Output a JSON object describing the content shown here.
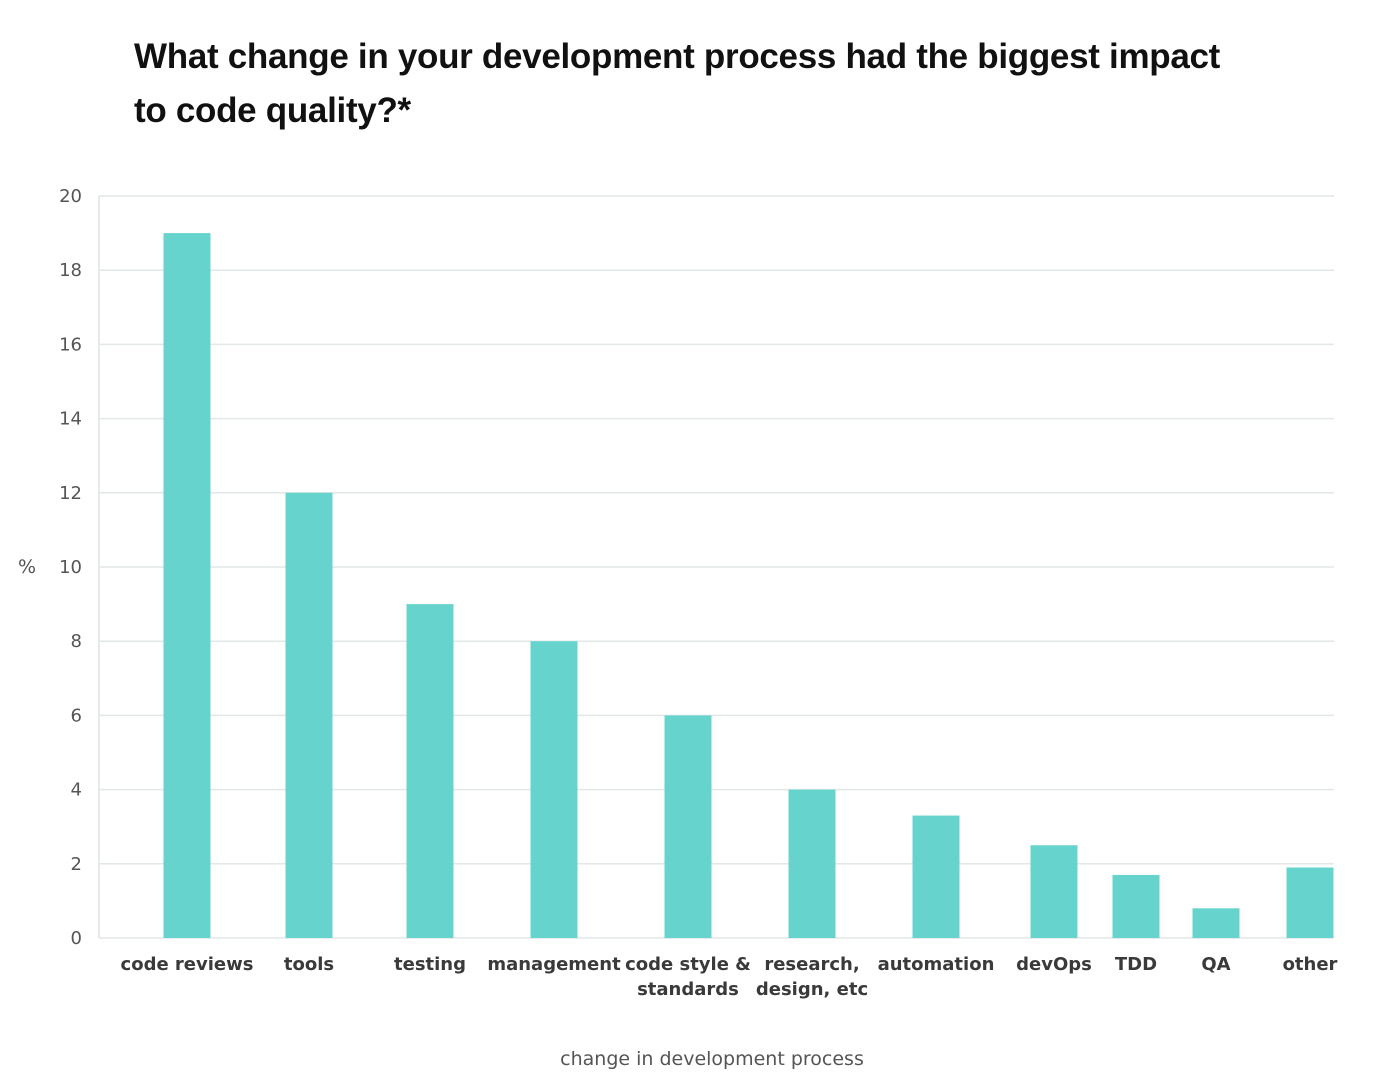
{
  "chart_data": {
    "type": "bar",
    "title": "What change in your development process had the biggest impact to code quality?*",
    "xlabel": "change in development process",
    "ylabel": "%",
    "ylim": [
      0,
      20
    ],
    "yticks": [
      0,
      2,
      4,
      6,
      8,
      10,
      12,
      14,
      16,
      18,
      20
    ],
    "grid": true,
    "bar_color": "#66d4cc",
    "categories": [
      "code reviews",
      "tools",
      "testing",
      "management",
      "code style & standards",
      "research, design, etc",
      "automation",
      "devOps",
      "TDD",
      "QA",
      "other"
    ],
    "category_lines": [
      [
        "code reviews"
      ],
      [
        "tools"
      ],
      [
        "testing"
      ],
      [
        "management"
      ],
      [
        "code style &",
        "standards"
      ],
      [
        "research,",
        "design, etc"
      ],
      [
        "automation"
      ],
      [
        "devOps"
      ],
      [
        "TDD"
      ],
      [
        "QA"
      ],
      [
        "other"
      ]
    ],
    "values": [
      19,
      12,
      9,
      8,
      6,
      4,
      3.3,
      2.5,
      1.7,
      0.8,
      1.9
    ]
  }
}
